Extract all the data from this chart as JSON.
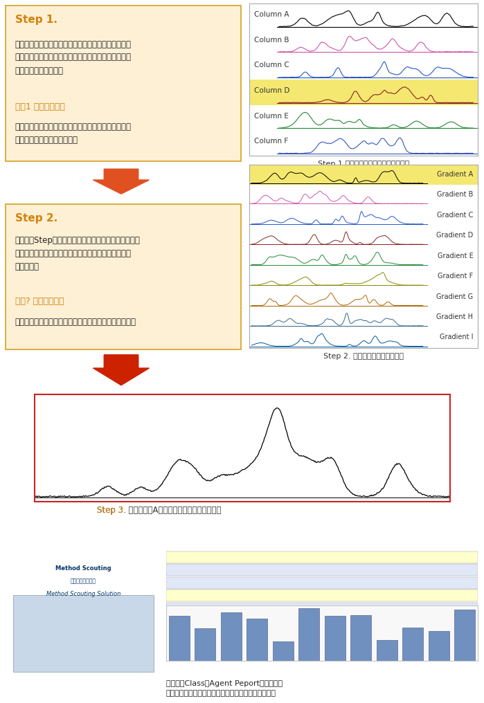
{
  "bg_color": "#ffffff",
  "step1_box_color": "#fdf0d5",
  "step1_border_color": "#d4a020",
  "step1_title": "Step 1.",
  "step1_title_color": "#d4820a",
  "step1_text": "摸索流动相与色谱柱。如果制作基本方法，那么，之后\n由软件自动设置流动相和色谱柱的组合。最大限度地降\n低了方法制作时的错误",
  "step1_eval_title": "评价1 色谱图的确认",
  "step1_eval_title_color": "#d4820a",
  "step1_eval_text": "综合判断峰检出数、分离度以及洗脱时间，找出适合分\n析目标成分的色谱柱和流动相",
  "step2_box_color": "#fdf0d5",
  "step2_border_color": "#d4a020",
  "step2_title": "Step 2.",
  "step2_title_color": "#d4820a",
  "step2_text": "使用通过Step确定的流动相与色谱柱，摸索梯度条件。\n这时也只需进行基本设置，之后由软件自动变更设置，\n获取数据。",
  "step2_eval_title": "评价? 色谱图的确认",
  "step2_eval_title_color": "#d4820a",
  "step2_eval_text": "综合判断峰检出数、分离度以及洗脱时间，找出最优条件",
  "step3_caption": "Step 3.",
  "step3_caption_color": "#d4820a",
  "step3_text": "完成色谱柱A与梯度组合的最适合的方法。",
  "bottom_caption": "如果使用Class－Agent Peport（选配），\n根据获得的色谱图，利用峰分离度，可以计算出评价值",
  "col_panel_columns": [
    "Column A",
    "Column B",
    "Column C",
    "Column D",
    "Column E",
    "Column F"
  ],
  "col_panel_colors": [
    "#000000",
    "#cc55aa",
    "#2255cc",
    "#882222",
    "#228833",
    "#3355bb"
  ],
  "col_panel_highlight": 4,
  "col_panel_highlight_color": "#f5e870",
  "grad_panel_gradients": [
    "Gradient A",
    "Gradient B",
    "Gradient C",
    "Gradient D",
    "Gradient E",
    "Gradient F",
    "Gradient G",
    "Gradient H",
    "Gradient I"
  ],
  "grad_panel_colors": [
    "#000000",
    "#cc55aa",
    "#2255cc",
    "#882222",
    "#228833",
    "#888800",
    "#aa6600",
    "#336688",
    "#005599"
  ],
  "grad_panel_highlight": 1,
  "grad_panel_highlight_color": "#f5e870",
  "step1_caption": "Step 1.摸索最适合的流动相与色谱柱。",
  "step2_caption": "Step 2. 摸索最适合的梯度条件。"
}
